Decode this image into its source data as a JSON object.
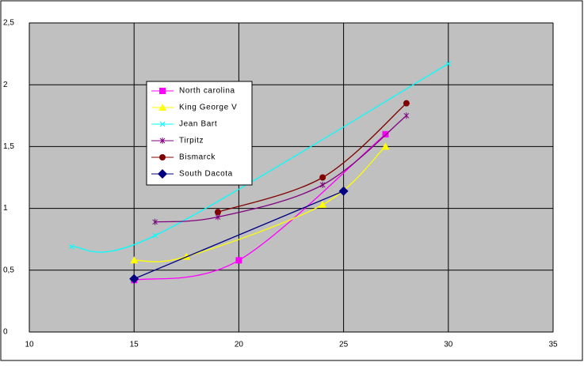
{
  "chart_data": {
    "type": "scatter",
    "smooth": true,
    "grid": true,
    "legend": "upper-left",
    "xlim": [
      10,
      35
    ],
    "xticks": [
      10,
      15,
      20,
      25,
      30,
      35
    ],
    "ylim": [
      0,
      2.5
    ],
    "yticks": [
      0,
      {
        "value": 0.5,
        "label": "0,5"
      },
      1,
      {
        "value": 1.5,
        "label": "1,5"
      },
      2,
      {
        "value": 2.5,
        "label": "2,5"
      }
    ],
    "series": [
      {
        "name": "North carolina",
        "color": "#ff00ff",
        "marker": "square",
        "x": [
          15,
          20,
          27
        ],
        "values": [
          0.42,
          0.58,
          1.6
        ]
      },
      {
        "name": "King George V",
        "color": "#ffff00",
        "marker": "triangle",
        "x": [
          15,
          17.5,
          24,
          27
        ],
        "values": [
          0.58,
          0.61,
          1.03,
          1.5
        ]
      },
      {
        "name": "Jean Bart",
        "color": "#00ffff",
        "marker": "x",
        "x": [
          12,
          16,
          30
        ],
        "values": [
          0.69,
          0.78,
          2.17
        ]
      },
      {
        "name": "Tirpitz",
        "color": "#800080",
        "marker": "star",
        "x": [
          16,
          19,
          24,
          28
        ],
        "values": [
          0.89,
          0.93,
          1.19,
          1.75
        ]
      },
      {
        "name": "Bismarck",
        "color": "#800000",
        "marker": "circle",
        "x": [
          19,
          24,
          28
        ],
        "values": [
          0.97,
          1.25,
          1.85
        ]
      },
      {
        "name": "South Dacota",
        "color": "#000080",
        "marker": "diamond",
        "x": [
          15,
          25
        ],
        "values": [
          0.43,
          1.14
        ]
      }
    ]
  }
}
